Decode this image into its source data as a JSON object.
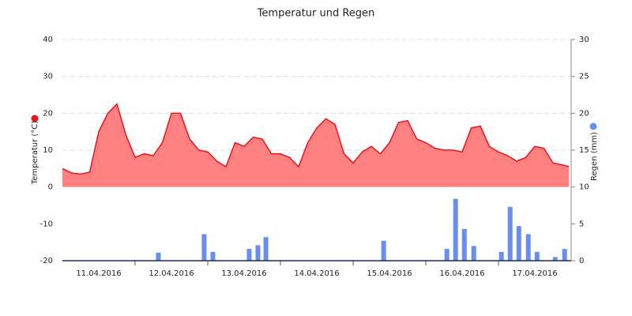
{
  "chart_data": {
    "type": "line-bar",
    "title": "Temperatur und Regen",
    "xlim": [
      0,
      7
    ],
    "xticks": [
      {
        "value": 0.5,
        "label": "11.04.2016"
      },
      {
        "value": 1.5,
        "label": "12.04.2016"
      },
      {
        "value": 2.5,
        "label": "13.04.2016"
      },
      {
        "value": 3.5,
        "label": "14.04.2016"
      },
      {
        "value": 4.5,
        "label": "15.04.2016"
      },
      {
        "value": 5.5,
        "label": "16.04.2016"
      },
      {
        "value": 6.5,
        "label": "17.04.2016"
      }
    ],
    "ylim": [
      -20,
      40
    ],
    "yticks": [
      -20,
      -10,
      0,
      10,
      20,
      30,
      40
    ],
    "y2lim": [
      0,
      30
    ],
    "y2ticks": [
      0,
      5,
      10,
      15,
      20,
      25,
      30
    ],
    "grid": true,
    "series": [
      {
        "name": "Temperatur (°C)",
        "type": "area",
        "color": "#e8141c",
        "fill": "#ff8080",
        "x": [
          0,
          0.125,
          0.25,
          0.375,
          0.5,
          0.625,
          0.75,
          0.875,
          1,
          1.125,
          1.25,
          1.375,
          1.5,
          1.625,
          1.75,
          1.875,
          2,
          2.125,
          2.25,
          2.375,
          2.5,
          2.625,
          2.75,
          2.875,
          3,
          3.125,
          3.25,
          3.375,
          3.5,
          3.625,
          3.75,
          3.875,
          4,
          4.125,
          4.25,
          4.375,
          4.5,
          4.625,
          4.75,
          4.875,
          5,
          5.125,
          5.25,
          5.375,
          5.5,
          5.625,
          5.75,
          5.875,
          6,
          6.125,
          6.25,
          6.375,
          6.5,
          6.625,
          6.75,
          6.875,
          6.97
        ],
        "values": [
          5,
          3.8,
          3.5,
          4,
          15,
          20,
          22.5,
          14,
          8,
          9,
          8.5,
          12,
          20,
          20,
          13,
          10,
          9.5,
          7,
          5.5,
          12,
          11,
          13.5,
          13,
          9,
          9,
          8,
          5.5,
          12,
          16,
          18.5,
          17,
          9,
          6.5,
          9.5,
          11,
          9,
          12,
          17.5,
          18,
          13,
          12,
          10.5,
          10,
          10,
          9.5,
          16,
          16.5,
          11,
          9.5,
          8.5,
          7,
          8,
          11,
          10.5,
          6.5,
          6,
          5.5
        ]
      },
      {
        "name": "Regen (mm)",
        "type": "bar",
        "axis": "y2",
        "color": "#6a8ef0",
        "x": [
          1.32,
          1.95,
          2.07,
          2.57,
          2.69,
          2.8,
          4.42,
          5.29,
          5.41,
          5.53,
          5.66,
          6.04,
          6.16,
          6.28,
          6.41,
          6.53,
          6.78,
          6.91
        ],
        "values": [
          1.1,
          3.6,
          1.2,
          1.6,
          2.1,
          3.2,
          2.7,
          1.6,
          8.4,
          4.3,
          2.0,
          1.2,
          7.3,
          4.7,
          3.6,
          1.2,
          0.5,
          1.6
        ]
      }
    ]
  }
}
